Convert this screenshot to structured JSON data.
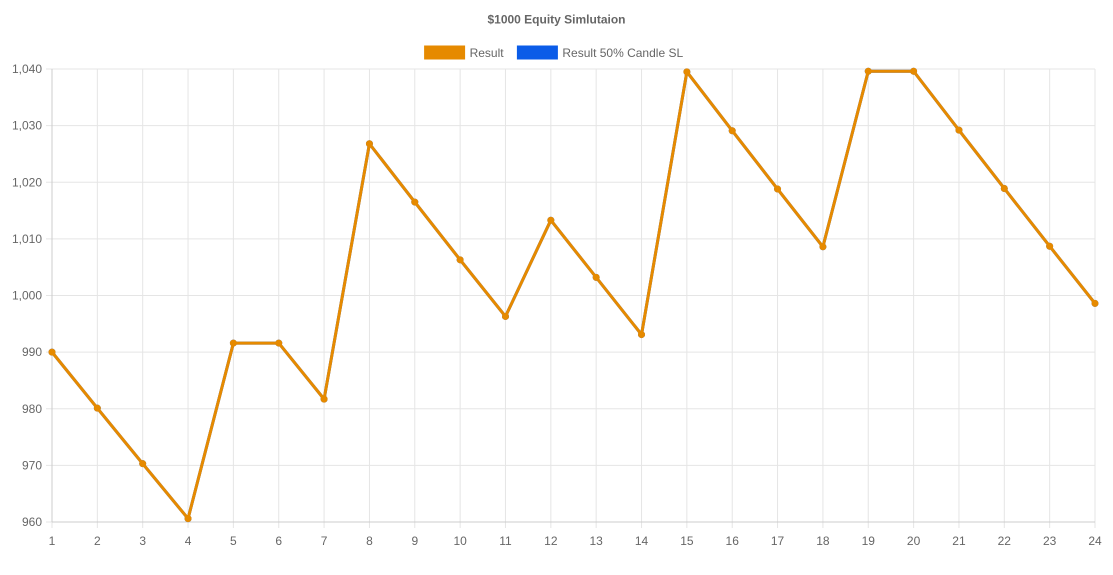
{
  "chart_data": {
    "type": "line",
    "title": "$1000 Equity Simlutaion",
    "xlabel": "",
    "ylabel": "",
    "categories": [
      "1",
      "2",
      "3",
      "4",
      "5",
      "6",
      "7",
      "8",
      "9",
      "10",
      "11",
      "12",
      "13",
      "14",
      "15",
      "16",
      "17",
      "18",
      "19",
      "20",
      "21",
      "22",
      "23",
      "24"
    ],
    "y_ticks": [
      "960",
      "970",
      "980",
      "990",
      "1,000",
      "1,010",
      "1,020",
      "1,030",
      "1,040"
    ],
    "ylim": [
      960,
      1040
    ],
    "grid": true,
    "legend_position": "top-center",
    "series": [
      {
        "name": "Result",
        "color": "#e68a00",
        "values": [
          990,
          980.1,
          970.3,
          960.6,
          991.6,
          991.6,
          981.7,
          1026.8,
          1016.5,
          1006.3,
          996.3,
          1013.3,
          1003.2,
          993.1,
          1039.5,
          1029.1,
          1018.8,
          1008.6,
          1039.6,
          1039.6,
          1029.2,
          1018.9,
          1008.7,
          998.6
        ]
      },
      {
        "name": "Result 50% Candle SL",
        "color": "#0b5ce8",
        "values": [
          990,
          980.1,
          970.3,
          960.6,
          991.6,
          991.6,
          981.7,
          1026.8,
          1016.5,
          1006.3,
          996.3,
          1013.3,
          1003.2,
          993.1,
          1039.5,
          1029.1,
          1018.8,
          1008.6,
          1039.6,
          1039.6,
          1029.2,
          1018.9,
          1008.7,
          998.6
        ]
      }
    ]
  }
}
